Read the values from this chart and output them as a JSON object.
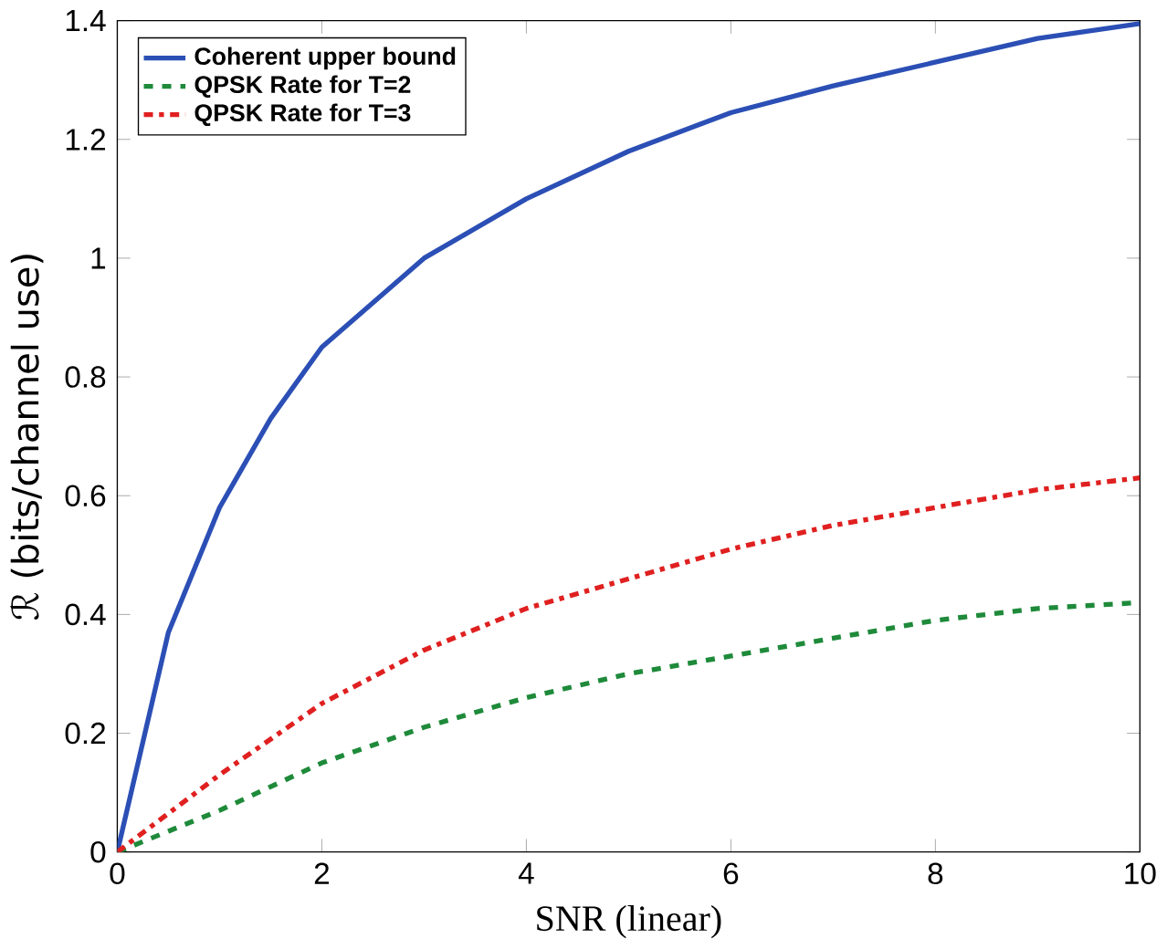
{
  "chart_data": {
    "type": "line",
    "xlabel": "SNR (linear)",
    "ylabel": "ℛ (bits/channel use)",
    "xlim": [
      0,
      10
    ],
    "ylim": [
      0,
      1.4
    ],
    "xticks": [
      0,
      2,
      4,
      6,
      8,
      10
    ],
    "yticks": [
      0,
      0.2,
      0.4,
      0.6,
      0.8,
      1,
      1.2,
      1.4
    ],
    "legend": "top left",
    "x": [
      0,
      0.5,
      1,
      1.5,
      2,
      3,
      4,
      5,
      6,
      7,
      8,
      9,
      10
    ],
    "series": [
      {
        "name": "Coherent upper bound",
        "color": "#2b4fb5",
        "line_style": "solid",
        "values": [
          0,
          0.37,
          0.58,
          0.73,
          0.85,
          1.0,
          1.1,
          1.18,
          1.245,
          1.29,
          1.33,
          1.37,
          1.395
        ]
      },
      {
        "name": "QPSK Rate for T=2",
        "color": "#1e8a3a",
        "line_style": "dashed",
        "values": [
          0,
          0.035,
          0.07,
          0.11,
          0.15,
          0.21,
          0.26,
          0.3,
          0.33,
          0.36,
          0.39,
          0.41,
          0.42
        ]
      },
      {
        "name": "QPSK Rate for T=3",
        "color": "#e02020",
        "line_style": "dashdotted",
        "values": [
          0,
          0.065,
          0.13,
          0.19,
          0.25,
          0.34,
          0.41,
          0.46,
          0.51,
          0.55,
          0.58,
          0.61,
          0.63
        ]
      }
    ]
  }
}
